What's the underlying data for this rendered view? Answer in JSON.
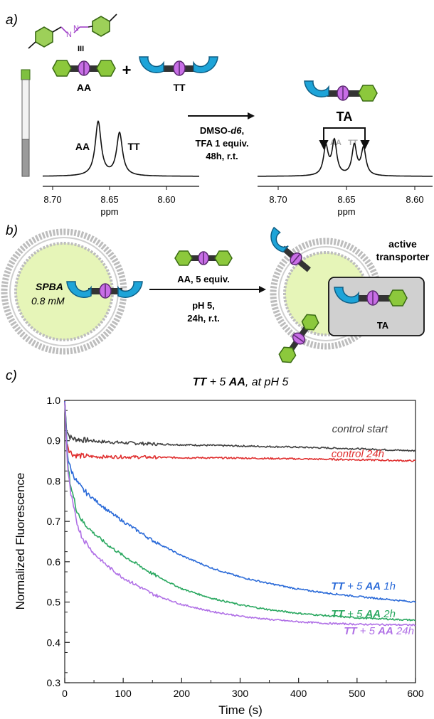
{
  "panel_a": {
    "label": "a)",
    "aa_label": "AA",
    "tt_label": "TT",
    "plus": "+",
    "ta_label": "TA",
    "spec_aa": "AA",
    "spec_tt": "TT",
    "spec_aa_grey": "AA",
    "spec_tt_grey": "TT",
    "cond1_prefix": "DMSO-",
    "cond1_italic": "d6",
    "cond1_suffix": ",",
    "cond2": "TFA 1 equiv.",
    "cond3": "48h, r.t.",
    "ticks_left": [
      "8.70",
      "8.65",
      "8.60"
    ],
    "ticks_right": [
      "8.70",
      "8.65",
      "8.60"
    ],
    "xlabel_left": "ppm",
    "xlabel_right": "ppm"
  },
  "panel_b": {
    "label": "b)",
    "vesicle_name": "SPBA",
    "vesicle_conc": "0.8 mM",
    "reagent": "AA, 5 equiv.",
    "cond1": "pH 5,",
    "cond2": "24h, r.t.",
    "active1": "active",
    "active2": "transporter",
    "ta_label": "TA"
  },
  "colors": {
    "phenyl": "#8cc83c",
    "phenyl_edge": "#3a6a14",
    "cup": "#1ea4d8",
    "cup_edge": "#0e5f86",
    "purple": "#c86ee6",
    "purple_edge": "#5a2870",
    "vesicle_fill": "#e6f5b8",
    "azine": "#a040c8",
    "series_control_start": "#404040",
    "series_control_24h": "#e03030",
    "series_1h": "#2a6ad8",
    "series_2h": "#2aa860",
    "series_24h": "#b070e6"
  },
  "chart_data": {
    "type": "line",
    "panel_label": "c)",
    "title_parts": [
      "TT",
      " + 5 ",
      "AA",
      ", at pH 5"
    ],
    "xlabel": "Time (s)",
    "ylabel": "Normalized  Fluorescence",
    "xlim": [
      0,
      600
    ],
    "ylim": [
      0.3,
      1.0
    ],
    "xticks": [
      0,
      100,
      200,
      300,
      400,
      500,
      600
    ],
    "yticks": [
      0.3,
      0.4,
      0.5,
      0.6,
      0.7,
      0.8,
      0.9,
      1.0
    ],
    "series": [
      {
        "name": "control start",
        "color": "#404040",
        "x": [
          0,
          3,
          8,
          15,
          30,
          60,
          100,
          150,
          200,
          300,
          400,
          500,
          600
        ],
        "y": [
          1.0,
          0.93,
          0.91,
          0.905,
          0.902,
          0.898,
          0.895,
          0.892,
          0.89,
          0.887,
          0.884,
          0.88,
          0.875
        ]
      },
      {
        "name": "control 24h",
        "color": "#e03030",
        "x": [
          0,
          3,
          8,
          15,
          30,
          60,
          100,
          200,
          300,
          400,
          500,
          600
        ],
        "y": [
          1.0,
          0.9,
          0.875,
          0.865,
          0.862,
          0.86,
          0.86,
          0.858,
          0.857,
          0.855,
          0.853,
          0.85
        ]
      },
      {
        "name_parts": [
          "TT",
          " + 5 ",
          "AA",
          " 1h"
        ],
        "color": "#2a6ad8",
        "x": [
          0,
          5,
          10,
          20,
          30,
          50,
          75,
          100,
          150,
          200,
          250,
          300,
          350,
          400,
          450,
          500,
          550,
          600
        ],
        "y": [
          1.0,
          0.86,
          0.83,
          0.8,
          0.78,
          0.755,
          0.725,
          0.7,
          0.653,
          0.615,
          0.585,
          0.562,
          0.546,
          0.532,
          0.522,
          0.514,
          0.507,
          0.5
        ]
      },
      {
        "name_parts": [
          "TT",
          " + 5 ",
          "AA",
          "  2h"
        ],
        "color": "#2aa860",
        "x": [
          0,
          5,
          10,
          20,
          30,
          50,
          75,
          100,
          150,
          200,
          250,
          300,
          350,
          400,
          450,
          500,
          550,
          600
        ],
        "y": [
          1.0,
          0.84,
          0.79,
          0.73,
          0.7,
          0.67,
          0.64,
          0.615,
          0.57,
          0.533,
          0.51,
          0.493,
          0.481,
          0.472,
          0.466,
          0.461,
          0.458,
          0.455
        ]
      },
      {
        "name_parts": [
          "TT",
          " + 5 ",
          "AA",
          " 24h"
        ],
        "color": "#b070e6",
        "x": [
          0,
          5,
          10,
          20,
          30,
          50,
          75,
          100,
          150,
          200,
          250,
          300,
          350,
          400,
          450,
          500,
          550,
          600
        ],
        "y": [
          1.0,
          0.83,
          0.77,
          0.7,
          0.66,
          0.62,
          0.587,
          0.56,
          0.52,
          0.494,
          0.477,
          0.465,
          0.457,
          0.451,
          0.447,
          0.445,
          0.444,
          0.443
        ]
      }
    ]
  }
}
